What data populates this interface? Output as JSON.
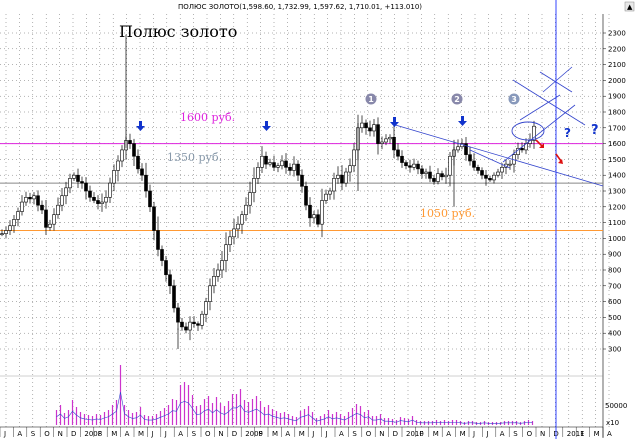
{
  "header": "ПОЛЮС ЗОЛОТО(1,598.60, 1,732.99, 1,597.62, 1,710.01, +113.010)",
  "chart_data": {
    "type": "candlestick",
    "title": "Полюс золото",
    "ylim": [
      250,
      2350
    ],
    "yticks": [
      300,
      400,
      500,
      600,
      700,
      800,
      900,
      1000,
      1100,
      1200,
      1300,
      1400,
      1500,
      1600,
      1700,
      1800,
      1900,
      2000,
      2100,
      2200,
      2300
    ],
    "volume_tick": "50000",
    "volume_scale_label": "x10",
    "x_axis": [
      "J",
      "A",
      "S",
      "O",
      "N",
      "D",
      "2008",
      "F",
      "M",
      "A",
      "M",
      "J",
      "J",
      "A",
      "S",
      "O",
      "N",
      "D",
      "2009",
      "F",
      "M",
      "A",
      "M",
      "J",
      "J",
      "A",
      "S",
      "O",
      "N",
      "D",
      "2010",
      "F",
      "M",
      "A",
      "M",
      "J",
      "J",
      "A",
      "S",
      "O",
      "N",
      "D",
      "2011",
      "F",
      "M",
      "A"
    ],
    "levels": [
      {
        "label": "1600 руб.",
        "value": 1600,
        "color": "#dd22dd"
      },
      {
        "label": "1350 руб.",
        "value": 1350,
        "color": "#888888"
      },
      {
        "label": "1050 руб.",
        "value": 1050,
        "color": "#ff9933"
      }
    ],
    "markers": [
      "1",
      "2",
      "3"
    ],
    "question_marks": [
      "?",
      "?"
    ],
    "price": [
      [
        0,
        1030
      ],
      [
        4,
        1050
      ],
      [
        8,
        1080
      ],
      [
        12,
        1120
      ],
      [
        16,
        1170
      ],
      [
        20,
        1230
      ],
      [
        24,
        1260
      ],
      [
        28,
        1250
      ],
      [
        32,
        1270
      ],
      [
        36,
        1210
      ],
      [
        40,
        1180
      ],
      [
        44,
        1070
      ],
      [
        48,
        1090
      ],
      [
        52,
        1150
      ],
      [
        56,
        1210
      ],
      [
        60,
        1270
      ],
      [
        64,
        1320
      ],
      [
        68,
        1380
      ],
      [
        72,
        1400
      ],
      [
        76,
        1360
      ],
      [
        80,
        1350
      ],
      [
        84,
        1300
      ],
      [
        88,
        1260
      ],
      [
        92,
        1240
      ],
      [
        96,
        1220
      ],
      [
        100,
        1230
      ],
      [
        104,
        1260
      ],
      [
        108,
        1350
      ],
      [
        112,
        1430
      ],
      [
        116,
        1490
      ],
      [
        120,
        1560
      ],
      [
        124,
        1620
      ],
      [
        128,
        1600
      ],
      [
        132,
        1520
      ],
      [
        136,
        1440
      ],
      [
        140,
        1400
      ],
      [
        144,
        1300
      ],
      [
        148,
        1200
      ],
      [
        152,
        1050
      ],
      [
        156,
        930
      ],
      [
        160,
        860
      ],
      [
        164,
        770
      ],
      [
        168,
        700
      ],
      [
        172,
        560
      ],
      [
        176,
        470
      ],
      [
        180,
        440
      ],
      [
        184,
        420
      ],
      [
        188,
        470
      ],
      [
        192,
        460
      ],
      [
        196,
        450
      ],
      [
        200,
        520
      ],
      [
        204,
        600
      ],
      [
        208,
        700
      ],
      [
        212,
        760
      ],
      [
        216,
        800
      ],
      [
        220,
        860
      ],
      [
        224,
        960
      ],
      [
        228,
        1010
      ],
      [
        232,
        1060
      ],
      [
        236,
        1090
      ],
      [
        240,
        1150
      ],
      [
        244,
        1210
      ],
      [
        248,
        1290
      ],
      [
        252,
        1380
      ],
      [
        256,
        1450
      ],
      [
        260,
        1520
      ],
      [
        264,
        1470
      ],
      [
        268,
        1480
      ],
      [
        272,
        1450
      ],
      [
        276,
        1460
      ],
      [
        280,
        1490
      ],
      [
        284,
        1450
      ],
      [
        288,
        1430
      ],
      [
        292,
        1470
      ],
      [
        296,
        1400
      ],
      [
        300,
        1330
      ],
      [
        304,
        1210
      ],
      [
        308,
        1130
      ],
      [
        312,
        1150
      ],
      [
        316,
        1090
      ],
      [
        320,
        1240
      ],
      [
        324,
        1280
      ],
      [
        328,
        1300
      ],
      [
        332,
        1380
      ],
      [
        336,
        1400
      ],
      [
        340,
        1350
      ],
      [
        344,
        1420
      ],
      [
        348,
        1460
      ],
      [
        352,
        1560
      ],
      [
        356,
        1700
      ],
      [
        360,
        1730
      ],
      [
        364,
        1700
      ],
      [
        368,
        1680
      ],
      [
        372,
        1720
      ],
      [
        376,
        1600
      ],
      [
        380,
        1610
      ],
      [
        384,
        1630
      ],
      [
        388,
        1640
      ],
      [
        392,
        1560
      ],
      [
        396,
        1520
      ],
      [
        400,
        1480
      ],
      [
        404,
        1460
      ],
      [
        408,
        1450
      ],
      [
        412,
        1470
      ],
      [
        416,
        1440
      ],
      [
        420,
        1410
      ],
      [
        424,
        1420
      ],
      [
        428,
        1380
      ],
      [
        432,
        1360
      ],
      [
        436,
        1410
      ],
      [
        440,
        1390
      ],
      [
        444,
        1400
      ],
      [
        448,
        1520
      ],
      [
        452,
        1560
      ],
      [
        456,
        1580
      ],
      [
        460,
        1600
      ],
      [
        464,
        1530
      ],
      [
        468,
        1490
      ],
      [
        472,
        1450
      ],
      [
        476,
        1430
      ],
      [
        480,
        1400
      ],
      [
        484,
        1380
      ],
      [
        488,
        1370
      ],
      [
        492,
        1400
      ],
      [
        496,
        1420
      ],
      [
        500,
        1450
      ],
      [
        504,
        1470
      ],
      [
        508,
        1470
      ],
      [
        512,
        1530
      ],
      [
        516,
        1570
      ],
      [
        520,
        1560
      ],
      [
        524,
        1600
      ],
      [
        528,
        1620
      ],
      [
        532,
        1710
      ]
    ],
    "volume": [
      [
        56,
        15
      ],
      [
        60,
        20
      ],
      [
        64,
        12
      ],
      [
        68,
        15
      ],
      [
        72,
        25
      ],
      [
        76,
        18
      ],
      [
        80,
        13
      ],
      [
        84,
        11
      ],
      [
        88,
        10
      ],
      [
        92,
        9
      ],
      [
        96,
        11
      ],
      [
        100,
        10
      ],
      [
        104,
        13
      ],
      [
        108,
        15
      ],
      [
        112,
        20
      ],
      [
        116,
        25
      ],
      [
        120,
        60
      ],
      [
        124,
        20
      ],
      [
        128,
        15
      ],
      [
        132,
        12
      ],
      [
        136,
        13
      ],
      [
        140,
        18
      ],
      [
        144,
        10
      ],
      [
        148,
        9
      ],
      [
        152,
        9
      ],
      [
        156,
        11
      ],
      [
        160,
        14
      ],
      [
        164,
        17
      ],
      [
        168,
        20
      ],
      [
        172,
        26
      ],
      [
        176,
        25
      ],
      [
        180,
        40
      ],
      [
        184,
        43
      ],
      [
        188,
        40
      ],
      [
        192,
        30
      ],
      [
        196,
        19
      ],
      [
        200,
        20
      ],
      [
        204,
        26
      ],
      [
        208,
        29
      ],
      [
        212,
        22
      ],
      [
        216,
        28
      ],
      [
        220,
        22
      ],
      [
        224,
        19
      ],
      [
        228,
        24
      ],
      [
        232,
        31
      ],
      [
        236,
        31
      ],
      [
        240,
        36
      ],
      [
        244,
        25
      ],
      [
        248,
        23
      ],
      [
        252,
        26
      ],
      [
        256,
        29
      ],
      [
        260,
        24
      ],
      [
        264,
        18
      ],
      [
        268,
        20
      ],
      [
        272,
        16
      ],
      [
        276,
        14
      ],
      [
        280,
        12
      ],
      [
        284,
        13
      ],
      [
        288,
        11
      ],
      [
        292,
        9
      ],
      [
        296,
        8
      ],
      [
        300,
        14
      ],
      [
        304,
        16
      ],
      [
        308,
        19
      ],
      [
        312,
        13
      ],
      [
        316,
        7
      ],
      [
        320,
        9
      ],
      [
        324,
        11
      ],
      [
        328,
        15
      ],
      [
        332,
        11
      ],
      [
        336,
        13
      ],
      [
        340,
        11
      ],
      [
        344,
        9
      ],
      [
        348,
        13
      ],
      [
        352,
        17
      ],
      [
        356,
        21
      ],
      [
        360,
        19
      ],
      [
        364,
        13
      ],
      [
        368,
        15
      ],
      [
        372,
        9
      ],
      [
        376,
        9
      ],
      [
        380,
        11
      ],
      [
        384,
        7
      ],
      [
        388,
        7
      ],
      [
        392,
        6
      ],
      [
        396,
        5
      ],
      [
        400,
        8
      ],
      [
        404,
        7
      ],
      [
        408,
        6
      ],
      [
        412,
        9
      ],
      [
        416,
        5
      ],
      [
        420,
        4
      ],
      [
        424,
        4
      ],
      [
        428,
        4
      ],
      [
        432,
        4
      ],
      [
        436,
        5
      ],
      [
        440,
        4
      ],
      [
        444,
        5
      ],
      [
        448,
        4
      ],
      [
        452,
        5
      ],
      [
        456,
        5
      ],
      [
        460,
        4
      ],
      [
        464,
        3
      ],
      [
        468,
        4
      ],
      [
        472,
        4
      ],
      [
        476,
        3
      ],
      [
        480,
        3
      ],
      [
        484,
        4
      ],
      [
        488,
        3
      ],
      [
        492,
        3
      ],
      [
        496,
        3
      ],
      [
        500,
        3
      ],
      [
        504,
        4
      ],
      [
        508,
        4
      ],
      [
        512,
        4
      ],
      [
        516,
        4
      ],
      [
        520,
        3
      ],
      [
        524,
        4
      ],
      [
        528,
        5
      ],
      [
        532,
        4
      ]
    ]
  }
}
